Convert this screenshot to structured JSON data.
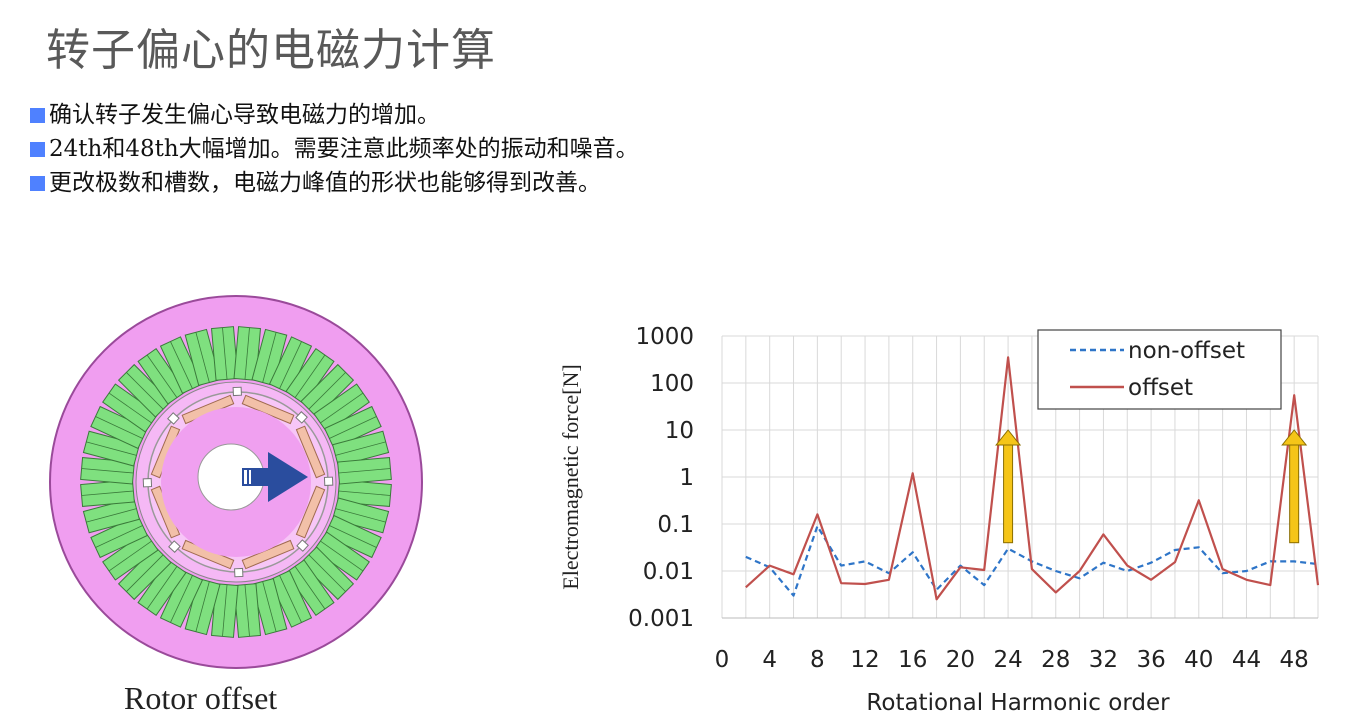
{
  "page": {
    "title": "转子偏心的电磁力计算",
    "bullets": [
      "确认转子发生偏心导致电磁力的增加。",
      "24th和48th大幅增加。需要注意此频率处的振动和噪音。",
      "更改极数和槽数，电磁力峰值的形状也能够得到改善。"
    ],
    "bullet_color": "#4f81ff"
  },
  "rotor_figure": {
    "caption": "Rotor offset",
    "stator_color": "#f09ef0",
    "tooth_color": "#7fe07f",
    "arrow_color": "#2a4d9e",
    "magnet_color": "#f2c0a8"
  },
  "chart_data": {
    "type": "line",
    "xlabel": "Rotational Harmonic order",
    "ylabel": "Electromagnetic force[N]",
    "yscale": "log",
    "ylim": [
      0.001,
      1000
    ],
    "xlim": [
      0,
      50
    ],
    "xticks": [
      "0",
      "4",
      "8",
      "12",
      "16",
      "20",
      "24",
      "28",
      "32",
      "36",
      "40",
      "44",
      "48"
    ],
    "yticks": [
      "1000",
      "100",
      "10",
      "1",
      "0.1",
      "0.01",
      "0.001"
    ],
    "grid": true,
    "legend": "top-right",
    "x": [
      2,
      4,
      6,
      8,
      10,
      12,
      14,
      16,
      18,
      20,
      22,
      24,
      26,
      28,
      30,
      32,
      34,
      36,
      38,
      40,
      42,
      44,
      46,
      48,
      50
    ],
    "series": [
      {
        "name": "non-offset",
        "color": "#2e75c8",
        "dash": true,
        "values": [
          0.02,
          0.012,
          0.003,
          0.09,
          0.013,
          0.016,
          0.009,
          0.025,
          0.004,
          0.013,
          0.005,
          0.03,
          0.016,
          0.01,
          0.007,
          0.015,
          0.01,
          0.015,
          0.028,
          0.032,
          0.009,
          0.01,
          0.016,
          0.016,
          0.014
        ]
      },
      {
        "name": "offset",
        "color": "#c0504d",
        "dash": false,
        "values": [
          0.0045,
          0.013,
          0.0085,
          0.16,
          0.0055,
          0.0053,
          0.0065,
          1.2,
          0.0025,
          0.012,
          0.0105,
          350,
          0.011,
          0.0035,
          0.01,
          0.06,
          0.013,
          0.0065,
          0.0155,
          0.32,
          0.011,
          0.0065,
          0.005,
          55,
          0.005
        ]
      }
    ],
    "annotations": [
      {
        "type": "up-arrow",
        "x": 24,
        "from": 0.04,
        "to": 10,
        "color": "#f5c518"
      },
      {
        "type": "up-arrow",
        "x": 48,
        "from": 0.04,
        "to": 10,
        "color": "#f5c518"
      }
    ]
  }
}
